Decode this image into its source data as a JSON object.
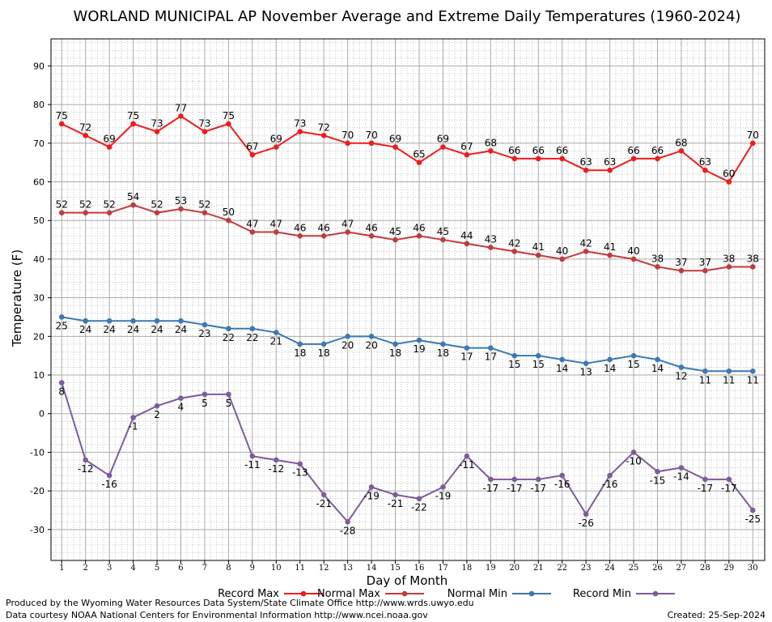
{
  "chart_data": {
    "type": "line",
    "title": "WORLAND MUNICIPAL AP November Average and Extreme Daily Temperatures (1960-2024)",
    "xlabel": "Day of Month",
    "ylabel": "Temperature (F)",
    "xlim": [
      0.55,
      30.5
    ],
    "ylim": [
      -38,
      97
    ],
    "yticks": [
      -30,
      -20,
      -10,
      0,
      10,
      20,
      30,
      40,
      50,
      60,
      70,
      80,
      90
    ],
    "x": [
      1,
      2,
      3,
      4,
      5,
      6,
      7,
      8,
      9,
      10,
      11,
      12,
      13,
      14,
      15,
      16,
      17,
      18,
      19,
      20,
      21,
      22,
      23,
      24,
      25,
      26,
      27,
      28,
      29,
      30
    ],
    "grid": true,
    "legend_placement": "bottom",
    "series": [
      {
        "name": "Record Max",
        "color": "#ee1c1c",
        "label_pos": "above",
        "values": [
          75,
          72,
          69,
          75,
          73,
          77,
          73,
          75,
          67,
          69,
          73,
          72,
          70,
          70,
          69,
          65,
          69,
          67,
          68,
          66,
          66,
          66,
          63,
          63,
          66,
          66,
          68,
          63,
          60,
          70
        ]
      },
      {
        "name": "Normal Max",
        "color": "#c03c3c",
        "label_pos": "above",
        "values": [
          52,
          52,
          52,
          54,
          52,
          53,
          52,
          50,
          47,
          47,
          46,
          46,
          47,
          46,
          45,
          46,
          45,
          44,
          43,
          42,
          41,
          40,
          42,
          41,
          40,
          38,
          37,
          37,
          38,
          38
        ]
      },
      {
        "name": "Normal Min",
        "color": "#3c78b4",
        "label_pos": "below",
        "values": [
          25,
          24,
          24,
          24,
          24,
          24,
          23,
          22,
          22,
          21,
          18,
          18,
          20,
          20,
          18,
          19,
          18,
          17,
          17,
          15,
          15,
          14,
          13,
          14,
          15,
          14,
          12,
          11,
          11,
          11
        ]
      },
      {
        "name": "Record Min",
        "color": "#7c5c9c",
        "label_pos": "below",
        "values": [
          8,
          -12,
          -16,
          -1,
          2,
          4,
          5,
          5,
          -11,
          -12,
          -13,
          -21,
          -28,
          -19,
          -21,
          -22,
          -19,
          -11,
          -17,
          -17,
          -17,
          -16,
          -26,
          -16,
          -10,
          -15,
          -14,
          -17,
          -17,
          -25
        ]
      }
    ]
  },
  "footer": {
    "produced_by": "Produced by the Wyoming Water Resources Data System/State Climate Office http://www.wrds.uwyo.edu",
    "data_courtesy": "Data courtesy NOAA National Centers for Environmental Information http://www.ncei.noaa.gov",
    "created": "Created:  25-Sep-2024"
  }
}
